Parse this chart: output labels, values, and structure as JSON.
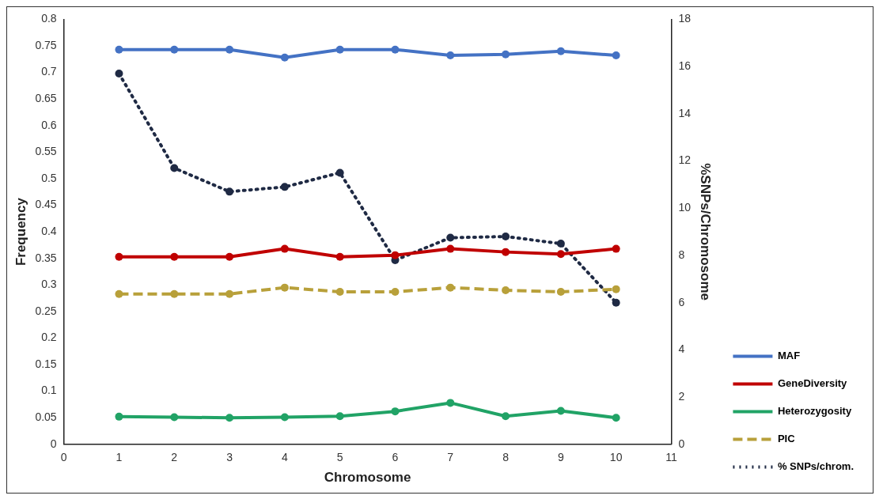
{
  "chart_data": {
    "type": "line",
    "xlabel": "Chromosome",
    "ylabel": "Frequency",
    "y2label": "%SNPs/Chromosome",
    "x": [
      1,
      2,
      3,
      4,
      5,
      6,
      7,
      8,
      9,
      10
    ],
    "xlim": [
      0,
      11
    ],
    "xticks": [
      0,
      1,
      2,
      3,
      4,
      5,
      6,
      7,
      8,
      9,
      10,
      11
    ],
    "ylim": [
      0,
      0.8
    ],
    "yticks": [
      0,
      0.05,
      0.1,
      0.15,
      0.2,
      0.25,
      0.3,
      0.35,
      0.4,
      0.45,
      0.5,
      0.55,
      0.6,
      0.65,
      0.7,
      0.75,
      0.8
    ],
    "y2lim": [
      0,
      18
    ],
    "y2ticks": [
      0,
      2,
      4,
      6,
      8,
      10,
      12,
      14,
      16,
      18
    ],
    "grid": false,
    "legend": "bottom right",
    "marker": "circle",
    "series": [
      {
        "name": "MAF",
        "color": "#4472c4",
        "line_style": "solid",
        "values": [
          0.743,
          0.743,
          0.743,
          0.728,
          0.743,
          0.743,
          0.732,
          0.734,
          0.74,
          0.732
        ]
      },
      {
        "name": "GeneDiversity",
        "color": "#c00000",
        "line_style": "solid",
        "values": [
          0.353,
          0.353,
          0.353,
          0.368,
          0.353,
          0.356,
          0.368,
          0.362,
          0.358,
          0.368
        ]
      },
      {
        "name": "Heterozygosity",
        "color": "#21a366",
        "line_style": "solid",
        "values": [
          0.052,
          0.051,
          0.05,
          0.051,
          0.053,
          0.062,
          0.078,
          0.053,
          0.063,
          0.05
        ]
      },
      {
        "name": "PIC",
        "color": "#b8a03a",
        "line_style": "dashed",
        "values": [
          0.283,
          0.283,
          0.283,
          0.295,
          0.287,
          0.287,
          0.295,
          0.29,
          0.287,
          0.292
        ]
      },
      {
        "name": "% SNPs/chrom.",
        "color": "#1f2a44",
        "line_style": "dotted",
        "axis": "y2",
        "values": [
          15.7,
          11.7,
          10.7,
          10.9,
          11.5,
          7.8,
          8.75,
          8.8,
          8.5,
          6.0
        ]
      }
    ]
  }
}
